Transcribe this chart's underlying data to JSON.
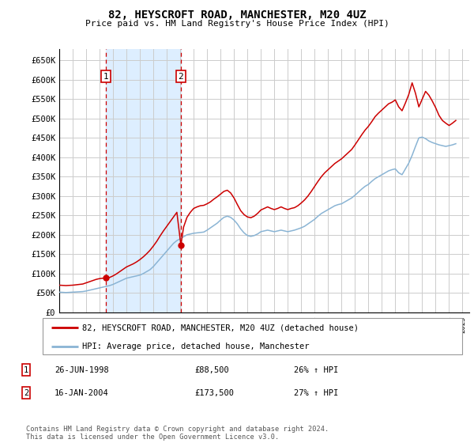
{
  "title": "82, HEYSCROFT ROAD, MANCHESTER, M20 4UZ",
  "subtitle": "Price paid vs. HM Land Registry's House Price Index (HPI)",
  "ylabel_ticks": [
    0,
    50000,
    100000,
    150000,
    200000,
    250000,
    300000,
    350000,
    400000,
    450000,
    500000,
    550000,
    600000,
    650000
  ],
  "ylabel_labels": [
    "£0",
    "£50K",
    "£100K",
    "£150K",
    "£200K",
    "£250K",
    "£300K",
    "£350K",
    "£400K",
    "£450K",
    "£500K",
    "£550K",
    "£600K",
    "£650K"
  ],
  "xlim_start": 1995.0,
  "xlim_end": 2025.5,
  "ylim_min": 0,
  "ylim_max": 680000,
  "background_color": "#ffffff",
  "grid_color": "#cccccc",
  "plot_bg_color": "#ffffff",
  "transaction_dates": [
    1998.486,
    2004.046
  ],
  "transaction_prices": [
    88500,
    173500
  ],
  "transaction_labels": [
    "1",
    "2"
  ],
  "red_line_color": "#cc0000",
  "blue_line_color": "#8ab4d4",
  "marker_fill": "#cc0000",
  "vline_color": "#cc0000",
  "shade_color": "#ddeeff",
  "legend_label_red": "82, HEYSCROFT ROAD, MANCHESTER, M20 4UZ (detached house)",
  "legend_label_blue": "HPI: Average price, detached house, Manchester",
  "table_rows": [
    {
      "num": "1",
      "date": "26-JUN-1998",
      "price": "£88,500",
      "hpi": "26% ↑ HPI"
    },
    {
      "num": "2",
      "date": "16-JAN-2004",
      "price": "£173,500",
      "hpi": "27% ↑ HPI"
    }
  ],
  "footer": "Contains HM Land Registry data © Crown copyright and database right 2024.\nThis data is licensed under the Open Government Licence v3.0.",
  "hpi_data": {
    "years": [
      1995.0,
      1995.25,
      1995.5,
      1995.75,
      1996.0,
      1996.25,
      1996.5,
      1996.75,
      1997.0,
      1997.25,
      1997.5,
      1997.75,
      1998.0,
      1998.25,
      1998.5,
      1998.75,
      1999.0,
      1999.25,
      1999.5,
      1999.75,
      2000.0,
      2000.25,
      2000.5,
      2000.75,
      2001.0,
      2001.25,
      2001.5,
      2001.75,
      2002.0,
      2002.25,
      2002.5,
      2002.75,
      2003.0,
      2003.25,
      2003.5,
      2003.75,
      2004.0,
      2004.25,
      2004.5,
      2004.75,
      2005.0,
      2005.25,
      2005.5,
      2005.75,
      2006.0,
      2006.25,
      2006.5,
      2006.75,
      2007.0,
      2007.25,
      2007.5,
      2007.75,
      2008.0,
      2008.25,
      2008.5,
      2008.75,
      2009.0,
      2009.25,
      2009.5,
      2009.75,
      2010.0,
      2010.25,
      2010.5,
      2010.75,
      2011.0,
      2011.25,
      2011.5,
      2011.75,
      2012.0,
      2012.25,
      2012.5,
      2012.75,
      2013.0,
      2013.25,
      2013.5,
      2013.75,
      2014.0,
      2014.25,
      2014.5,
      2014.75,
      2015.0,
      2015.25,
      2015.5,
      2015.75,
      2016.0,
      2016.25,
      2016.5,
      2016.75,
      2017.0,
      2017.25,
      2017.5,
      2017.75,
      2018.0,
      2018.25,
      2018.5,
      2018.75,
      2019.0,
      2019.25,
      2019.5,
      2019.75,
      2020.0,
      2020.25,
      2020.5,
      2020.75,
      2021.0,
      2021.25,
      2021.5,
      2021.75,
      2022.0,
      2022.25,
      2022.5,
      2022.75,
      2023.0,
      2023.25,
      2023.5,
      2023.75,
      2024.0,
      2024.25,
      2024.5
    ],
    "values": [
      52000,
      51500,
      51000,
      51500,
      52000,
      52500,
      53000,
      53500,
      55000,
      57000,
      59000,
      61000,
      63000,
      65000,
      67000,
      69000,
      72000,
      76000,
      80000,
      84000,
      88000,
      90000,
      92000,
      94000,
      96000,
      100000,
      105000,
      110000,
      118000,
      128000,
      138000,
      148000,
      158000,
      168000,
      178000,
      185000,
      190000,
      195000,
      200000,
      202000,
      204000,
      205000,
      206000,
      207000,
      212000,
      218000,
      224000,
      230000,
      238000,
      245000,
      248000,
      245000,
      238000,
      228000,
      215000,
      205000,
      198000,
      196000,
      198000,
      202000,
      208000,
      210000,
      212000,
      210000,
      208000,
      210000,
      212000,
      210000,
      208000,
      210000,
      212000,
      215000,
      218000,
      222000,
      228000,
      234000,
      240000,
      248000,
      255000,
      260000,
      265000,
      270000,
      275000,
      278000,
      280000,
      285000,
      290000,
      295000,
      302000,
      310000,
      318000,
      325000,
      330000,
      338000,
      345000,
      350000,
      355000,
      360000,
      365000,
      368000,
      370000,
      360000,
      355000,
      370000,
      385000,
      405000,
      428000,
      450000,
      452000,
      448000,
      442000,
      438000,
      435000,
      432000,
      430000,
      428000,
      430000,
      432000,
      435000
    ]
  },
  "property_data": {
    "years": [
      1995.0,
      1995.25,
      1995.5,
      1995.75,
      1996.0,
      1996.25,
      1996.5,
      1996.75,
      1997.0,
      1997.25,
      1997.5,
      1997.75,
      1998.0,
      1998.25,
      1998.486,
      1998.75,
      1999.0,
      1999.25,
      1999.5,
      1999.75,
      2000.0,
      2000.25,
      2000.5,
      2000.75,
      2001.0,
      2001.25,
      2001.5,
      2001.75,
      2002.0,
      2002.25,
      2002.5,
      2002.75,
      2003.0,
      2003.25,
      2003.5,
      2003.75,
      2004.046,
      2004.25,
      2004.5,
      2004.75,
      2005.0,
      2005.25,
      2005.5,
      2005.75,
      2006.0,
      2006.25,
      2006.5,
      2006.75,
      2007.0,
      2007.25,
      2007.5,
      2007.75,
      2008.0,
      2008.25,
      2008.5,
      2008.75,
      2009.0,
      2009.25,
      2009.5,
      2009.75,
      2010.0,
      2010.25,
      2010.5,
      2010.75,
      2011.0,
      2011.25,
      2011.5,
      2011.75,
      2012.0,
      2012.25,
      2012.5,
      2012.75,
      2013.0,
      2013.25,
      2013.5,
      2013.75,
      2014.0,
      2014.25,
      2014.5,
      2014.75,
      2015.0,
      2015.25,
      2015.5,
      2015.75,
      2016.0,
      2016.25,
      2016.5,
      2016.75,
      2017.0,
      2017.25,
      2017.5,
      2017.75,
      2018.0,
      2018.25,
      2018.5,
      2018.75,
      2019.0,
      2019.25,
      2019.5,
      2019.75,
      2020.0,
      2020.25,
      2020.5,
      2020.75,
      2021.0,
      2021.25,
      2021.5,
      2021.75,
      2022.0,
      2022.25,
      2022.5,
      2022.75,
      2023.0,
      2023.25,
      2023.5,
      2023.75,
      2024.0,
      2024.25,
      2024.5
    ],
    "values": [
      70000,
      69500,
      69000,
      69500,
      70000,
      71000,
      72000,
      73000,
      76000,
      79000,
      82000,
      85000,
      87000,
      88000,
      88500,
      90000,
      94000,
      99000,
      105000,
      111000,
      117000,
      121000,
      125000,
      130000,
      136000,
      143000,
      151000,
      160000,
      171000,
      183000,
      197000,
      210000,
      222000,
      234000,
      246000,
      258000,
      173500,
      220000,
      245000,
      258000,
      268000,
      272000,
      275000,
      276000,
      280000,
      285000,
      292000,
      298000,
      305000,
      312000,
      315000,
      308000,
      295000,
      278000,
      262000,
      252000,
      246000,
      244000,
      248000,
      255000,
      264000,
      268000,
      272000,
      268000,
      265000,
      268000,
      272000,
      268000,
      265000,
      268000,
      270000,
      275000,
      282000,
      290000,
      300000,
      312000,
      325000,
      338000,
      350000,
      360000,
      368000,
      376000,
      384000,
      390000,
      396000,
      404000,
      412000,
      420000,
      432000,
      445000,
      458000,
      470000,
      480000,
      492000,
      505000,
      514000,
      522000,
      530000,
      538000,
      542000,
      548000,
      530000,
      520000,
      540000,
      562000,
      592000,
      565000,
      530000,
      550000,
      570000,
      560000,
      545000,
      528000,
      508000,
      495000,
      488000,
      482000,
      488000,
      495000
    ]
  }
}
